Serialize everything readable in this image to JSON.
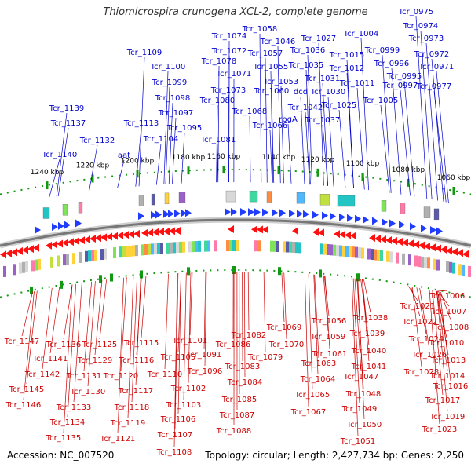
{
  "title": "Thiomicrospira crunogena XCL-2, complete genome",
  "accession": "Accession: NC_007520",
  "summary": "Topology: circular; Length: 2,427,734 bp; Genes: 2,250",
  "colors": {
    "plus_label": "#0000cc",
    "minus_label": "#cc0000",
    "plus_arrow": "#1f3cff",
    "minus_arrow": "#ff1010",
    "backbone": "#777777",
    "tick": "#119911"
  },
  "ticks": [
    "1240 kbp",
    "1220 kbp",
    "1200 kbp",
    "1180 kbp",
    "1160 kbp",
    "1140 kbp",
    "1120 kbp",
    "1100 kbp",
    "1080 kbp",
    "1060 kbp"
  ],
  "plus_strand_labels": [
    "Tcr_0975",
    "Tcr_0974",
    "Tcr_0973",
    "Tcr_0972",
    "Tcr_0971",
    "Tcr_0977",
    "Tcr_0999",
    "Tcr_0996",
    "Tcr_0995",
    "Tcr_0997",
    "Tcr_1004",
    "Tcr_1015",
    "Tcr_1012",
    "Tcr_1011",
    "Tcr_1005",
    "Tcr_1027",
    "Tcr_1036",
    "Tcr_1035",
    "Tcr_1031",
    "Tcr_1030",
    "Tcr_1025",
    "Tcr_1058",
    "Tcr_1046",
    "Tcr_1057",
    "Tcr_1055",
    "Tcr_1053",
    "Tcr_1060",
    "dcd",
    "Tcr_1042",
    "Tcr_1037",
    "rbgA",
    "Tcr_1066",
    "Tcr_1074",
    "Tcr_1072",
    "Tcr_1078",
    "Tcr_1071",
    "Tcr_1073",
    "Tcr_1080",
    "Tcr_1068",
    "Tcr_1081",
    "Tcr_1109",
    "Tcr_1100",
    "Tcr_1099",
    "Tcr_1098",
    "Tcr_1097",
    "Tcr_1095",
    "Tcr_1104",
    "Tcr_1113",
    "Tcr_1139",
    "Tcr_1137",
    "Tcr_1132",
    "Tcr_1140",
    "aat"
  ],
  "minus_strand_labels": [
    "Tcr_1006",
    "Tcr_1007",
    "Tcr_1021",
    "Tcr_1022",
    "Tcr_1008",
    "Tcr_1024",
    "Tcr_1010",
    "Tcr_1026",
    "Tcr_1013",
    "Tcr_1028",
    "Tcr_1014",
    "Tcr_1016",
    "Tcr_1017",
    "Tcr_1019",
    "Tcr_1023",
    "Tcr_1038",
    "Tcr_1039",
    "Tcr_1040",
    "Tcr_1041",
    "Tcr_1047",
    "Tcr_1048",
    "Tcr_1049",
    "Tcr_1050",
    "Tcr_1051",
    "Tcr_1056",
    "Tcr_1059",
    "Tcr_1061",
    "Tcr_1063",
    "Tcr_1064",
    "Tcr_1065",
    "Tcr_1067",
    "Tcr_1069",
    "Tcr_1070",
    "Tcr_1082",
    "Tcr_1086",
    "Tcr_1079",
    "Tcr_1083",
    "Tcr_1084",
    "Tcr_1085",
    "Tcr_1087",
    "Tcr_1088",
    "Tcr_1101",
    "Tcr_1091",
    "Tcr_1096",
    "Tcr_1105",
    "Tcr_1102",
    "Tcr_1103",
    "Tcr_1106",
    "Tcr_1107",
    "Tcr_1108",
    "Tcr_1115",
    "Tcr_1116",
    "Tcr_1110",
    "Tcr_1117",
    "Tcr_1118",
    "Tcr_1119",
    "Tcr_1121",
    "Tcr_1125",
    "Tcr_1120",
    "Tcr_1129",
    "Tcr_1131",
    "Tcr_1130",
    "Tcr_1133",
    "Tcr_1134",
    "Tcr_1135",
    "Tcr_1136",
    "Tcr_1141",
    "Tcr_1142",
    "Tcr_1147",
    "Tcr_1145",
    "Tcr_1146"
  ]
}
